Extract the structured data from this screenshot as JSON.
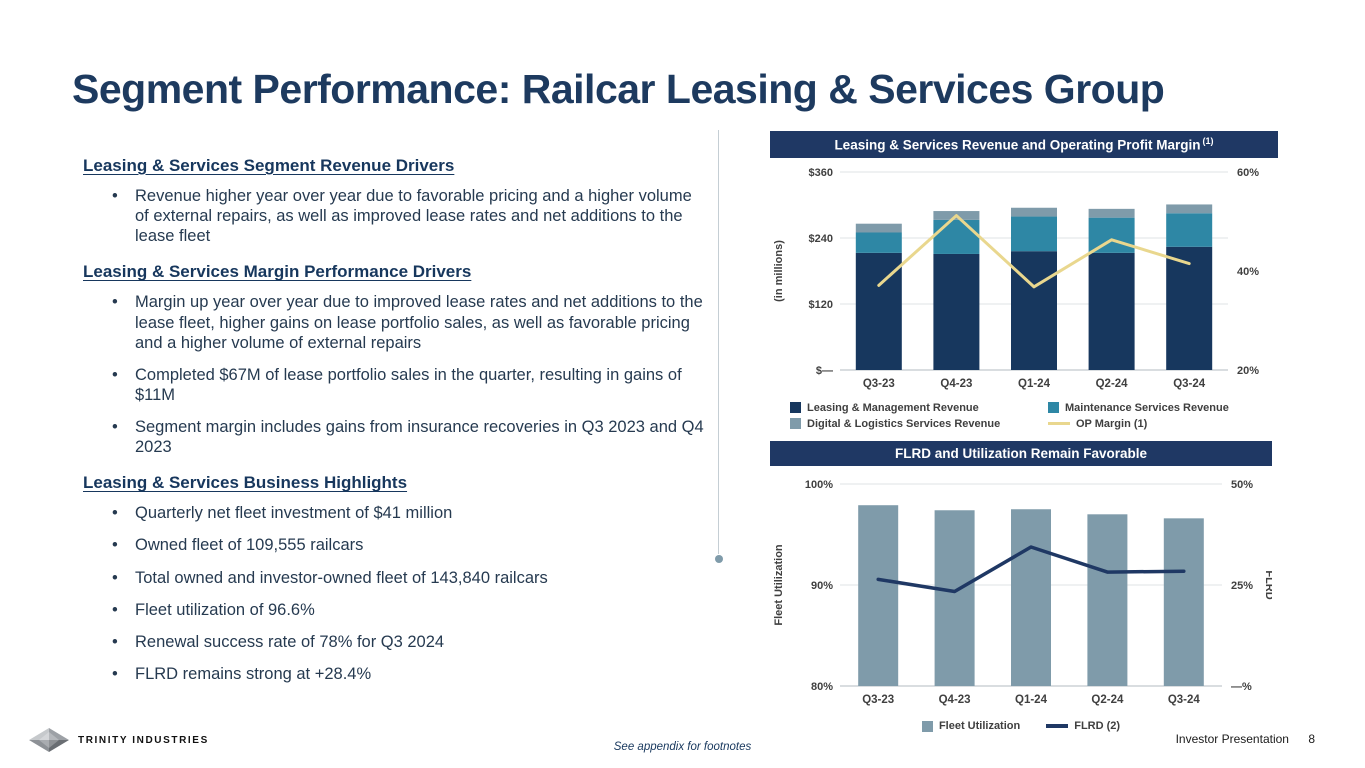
{
  "page": {
    "title": "Segment Performance: Railcar Leasing & Services Group"
  },
  "theme": {
    "navy": "#1f3864",
    "heading_color": "#17375d",
    "body_text_color": "#263a50",
    "bar_dark_navy": "#17375e",
    "bar_teal": "#2e87a5",
    "bar_gray": "#7f9baa",
    "op_margin_yellow": "#e9d78e"
  },
  "left_panel": {
    "sections": [
      {
        "heading": "Leasing & Services Segment Revenue Drivers",
        "bullets": [
          "Revenue higher year over year due to favorable pricing and a higher volume of external repairs, as well as improved lease rates and net additions to the lease fleet"
        ]
      },
      {
        "heading": "Leasing & Services Margin Performance Drivers",
        "bullets": [
          "Margin up year over year due to improved lease rates and net additions to the lease fleet, higher gains on lease portfolio sales, as well as favorable pricing and a higher volume of external repairs",
          "Completed $67M of lease portfolio sales in the quarter, resulting in gains of $11M",
          "Segment margin includes gains from insurance recoveries in Q3 2023 and Q4 2023"
        ]
      },
      {
        "heading": "Leasing & Services Business Highlights",
        "bullets": [
          "Quarterly net fleet investment of $41 million",
          "Owned fleet of 109,555 railcars",
          "Total owned and investor-owned fleet of 143,840 railcars",
          "Fleet utilization of 96.6%",
          "Renewal success rate of 78% for Q3 2024",
          "FLRD remains strong at +28.4%"
        ]
      }
    ]
  },
  "chart_data": [
    {
      "type": "bar-line",
      "title": "Leasing & Services Revenue and Operating Profit Margin",
      "title_footnote": "(1)",
      "categories": [
        "Q3-23",
        "Q4-23",
        "Q1-24",
        "Q2-24",
        "Q3-24"
      ],
      "series": [
        {
          "name": "Leasing & Management Revenue",
          "type": "bar",
          "color": "#17375e",
          "values": [
            213,
            211,
            216,
            213,
            224
          ]
        },
        {
          "name": "Maintenance Services Revenue",
          "type": "bar",
          "color": "#2e87a5",
          "values": [
            37,
            62,
            63,
            64,
            61
          ]
        },
        {
          "name": "Digital & Logistics Services Revenue",
          "type": "bar",
          "color": "#7f9baa",
          "values": [
            16,
            16,
            16,
            16,
            16
          ]
        },
        {
          "name": "OP Margin (1)",
          "type": "line",
          "axis": "right",
          "color": "#e9d78e",
          "values": [
            37.1,
            51.2,
            36.8,
            46.3,
            41.5
          ]
        }
      ],
      "left_axis": {
        "label": "(in millions)",
        "min": 0,
        "max": 360,
        "ticks": [
          {
            "v": 360,
            "label": "$360"
          },
          {
            "v": 240,
            "label": "$240"
          },
          {
            "v": 120,
            "label": "$120"
          },
          {
            "v": 0,
            "label": "$—"
          }
        ]
      },
      "right_axis": {
        "label": "",
        "min": 20,
        "max": 60,
        "ticks": [
          {
            "v": 60,
            "label": "60%"
          },
          {
            "v": 40,
            "label": "40%"
          },
          {
            "v": 20,
            "label": "20%"
          }
        ]
      }
    },
    {
      "type": "bar-line",
      "title": "FLRD and Utilization Remain Favorable",
      "title_footnote": "",
      "categories": [
        "Q3-23",
        "Q4-23",
        "Q1-24",
        "Q2-24",
        "Q3-24"
      ],
      "series": [
        {
          "name": "Fleet Utilization",
          "type": "bar",
          "color": "#7f9baa",
          "values": [
            97.9,
            97.4,
            97.5,
            97.0,
            96.6
          ]
        },
        {
          "name": "FLRD (2)",
          "type": "line",
          "axis": "right",
          "color": "#1f3864",
          "values": [
            26.4,
            23.4,
            34.4,
            28.2,
            28.4
          ]
        }
      ],
      "left_axis": {
        "label": "Fleet Utilization",
        "min": 80,
        "max": 100,
        "ticks": [
          {
            "v": 100,
            "label": "100%"
          },
          {
            "v": 90,
            "label": "90%"
          },
          {
            "v": 80,
            "label": "80%"
          }
        ]
      },
      "right_axis": {
        "label": "FLRD",
        "min": 0,
        "max": 50,
        "ticks": [
          {
            "v": 50,
            "label": "50%"
          },
          {
            "v": 25,
            "label": "25%"
          },
          {
            "v": 0,
            "label": "—%"
          }
        ]
      }
    }
  ],
  "footer": {
    "logo_text": "TRINITY INDUSTRIES",
    "footnote": "See appendix for footnotes",
    "presentation_label": "Investor Presentation",
    "page_number": "8"
  }
}
